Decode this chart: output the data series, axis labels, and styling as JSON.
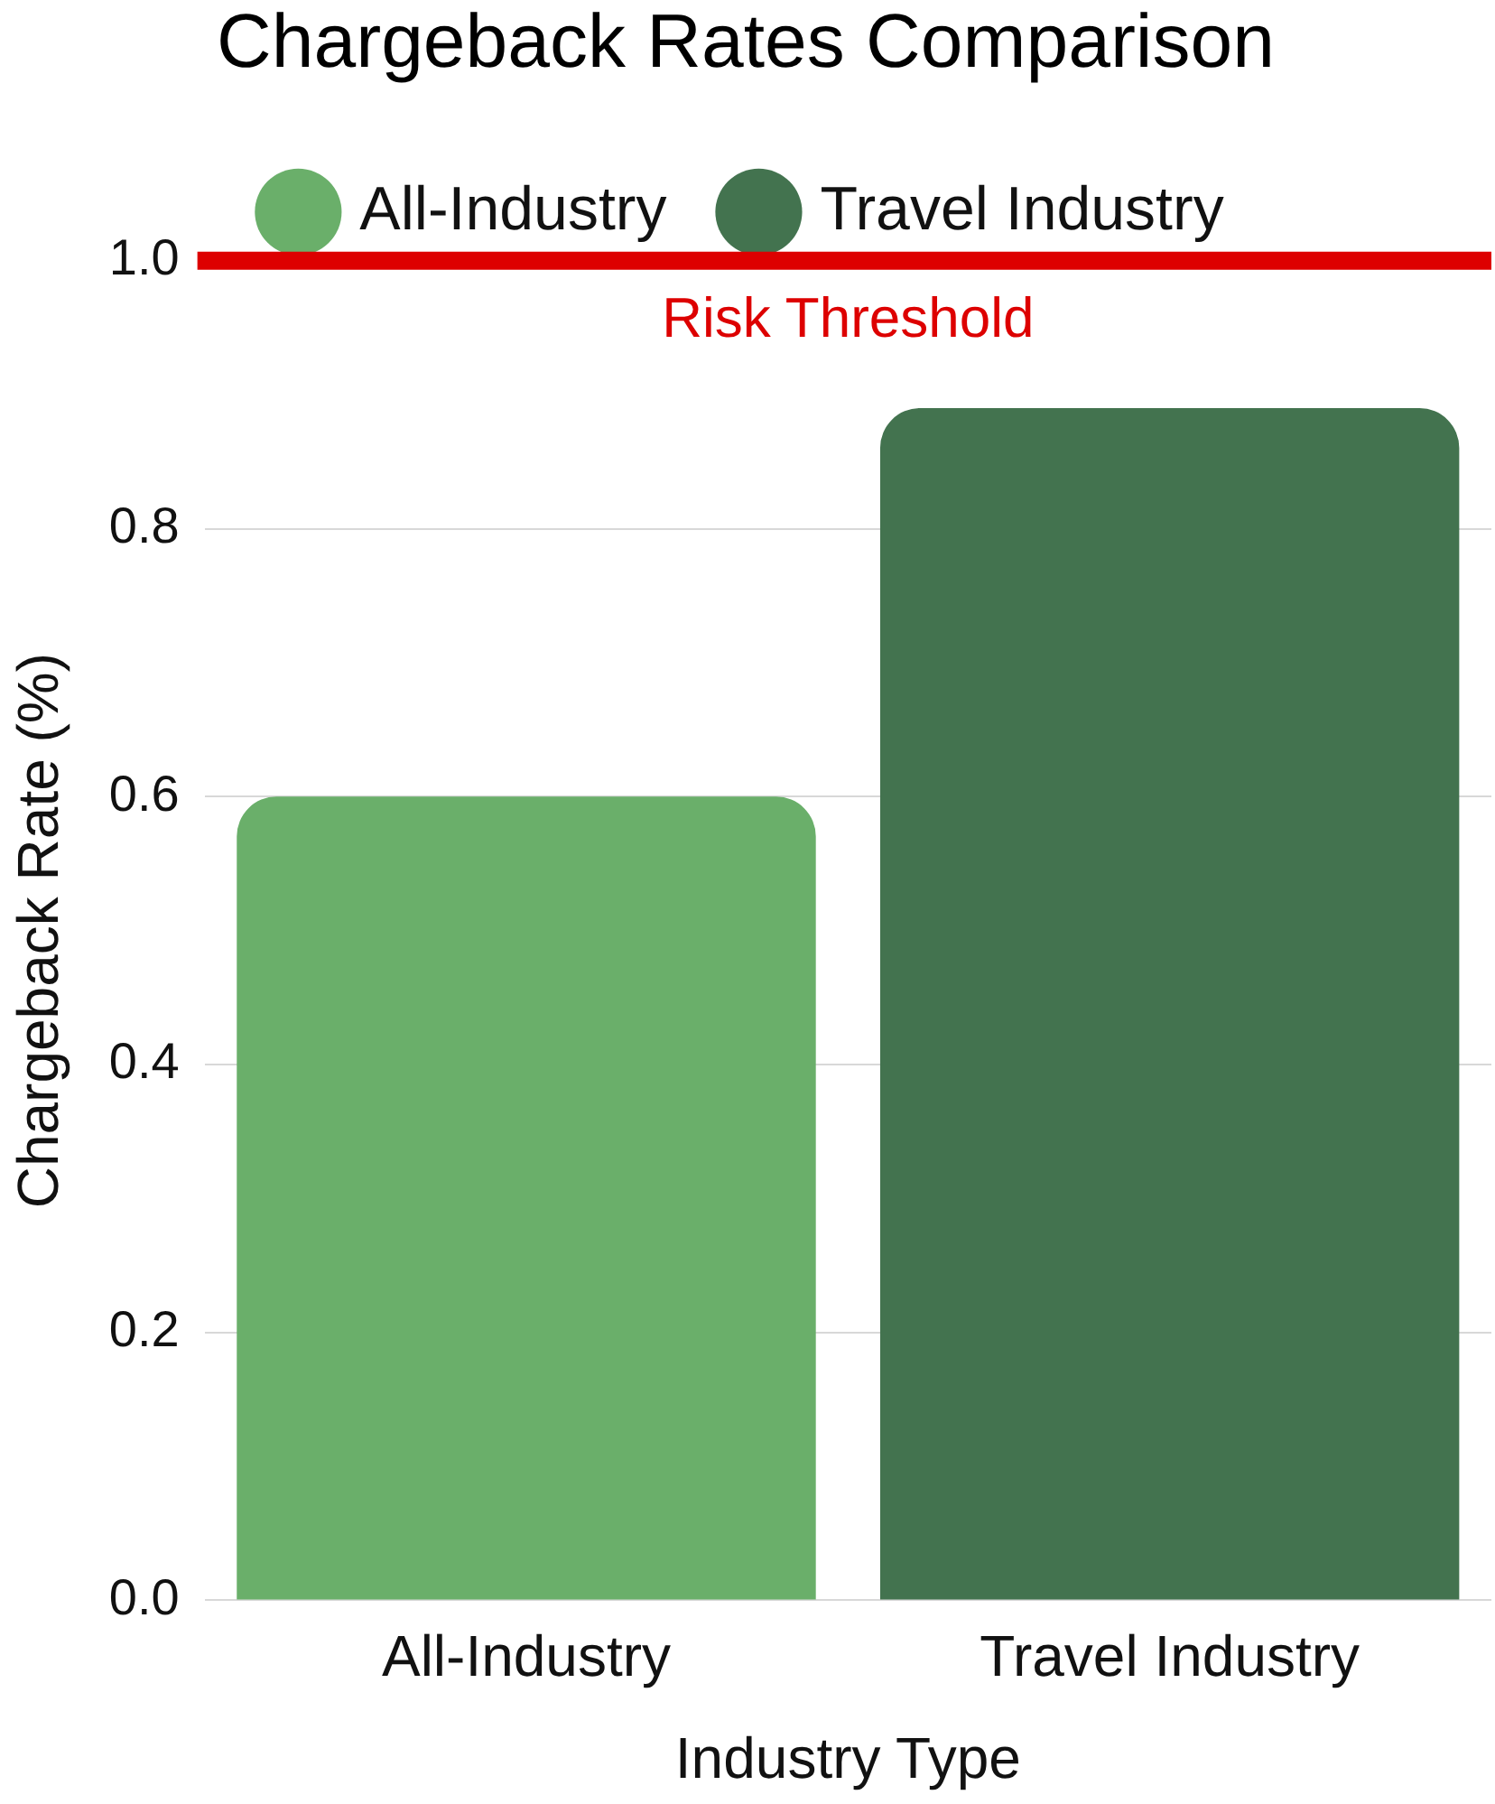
{
  "chart_data": {
    "type": "bar",
    "title": "Chargeback Rates Comparison",
    "xlabel": "Industry Type",
    "ylabel": "Chargeback Rate (%)",
    "categories": [
      "All-Industry",
      "Travel Industry"
    ],
    "series": [
      {
        "name": "All-Industry",
        "color": "#6aaf6a",
        "values": [
          0.6,
          null
        ]
      },
      {
        "name": "Travel Industry",
        "color": "#43734f",
        "values": [
          null,
          0.89
        ]
      }
    ],
    "ylim": [
      0,
      1
    ],
    "yticks": [
      {
        "value": 0,
        "label": "0.0"
      },
      {
        "value": 0.2,
        "label": "0.2"
      },
      {
        "value": 0.4,
        "label": "0.4"
      },
      {
        "value": 0.6,
        "label": "0.6"
      },
      {
        "value": 0.8,
        "label": "0.8"
      },
      {
        "value": 1,
        "label": "1.0"
      }
    ],
    "ref_lines": [
      {
        "axis": "y",
        "value": 1,
        "label": "Risk Threshold",
        "color": "#dd0000"
      }
    ],
    "grid": "y",
    "legend": "top"
  }
}
